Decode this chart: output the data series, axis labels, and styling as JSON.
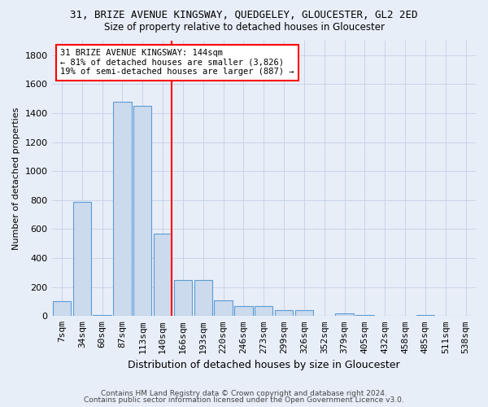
{
  "title1": "31, BRIZE AVENUE KINGSWAY, QUEDGELEY, GLOUCESTER, GL2 2ED",
  "title2": "Size of property relative to detached houses in Gloucester",
  "xlabel": "Distribution of detached houses by size in Gloucester",
  "ylabel": "Number of detached properties",
  "bin_labels": [
    "7sqm",
    "34sqm",
    "60sqm",
    "87sqm",
    "113sqm",
    "140sqm",
    "166sqm",
    "193sqm",
    "220sqm",
    "246sqm",
    "273sqm",
    "299sqm",
    "326sqm",
    "352sqm",
    "379sqm",
    "405sqm",
    "432sqm",
    "458sqm",
    "485sqm",
    "511sqm",
    "538sqm"
  ],
  "bar_heights": [
    105,
    790,
    5,
    1480,
    1450,
    570,
    250,
    250,
    110,
    70,
    70,
    40,
    40,
    2,
    20,
    10,
    2,
    2,
    5,
    2,
    2
  ],
  "bar_color": "#ccdaed",
  "bar_edge_color": "#5b9bd5",
  "vline_x_idx": 5,
  "vline_color": "red",
  "annotation_text": "31 BRIZE AVENUE KINGSWAY: 144sqm\n← 81% of detached houses are smaller (3,826)\n19% of semi-detached houses are larger (887) →",
  "annotation_box_color": "white",
  "annotation_box_edge": "red",
  "ylim": [
    0,
    1900
  ],
  "yticks": [
    0,
    200,
    400,
    600,
    800,
    1000,
    1200,
    1400,
    1600,
    1800
  ],
  "grid_color": "#c8d4e8",
  "footer1": "Contains HM Land Registry data © Crown copyright and database right 2024.",
  "footer2": "Contains public sector information licensed under the Open Government Licence v3.0.",
  "bg_color": "#e8eef8"
}
